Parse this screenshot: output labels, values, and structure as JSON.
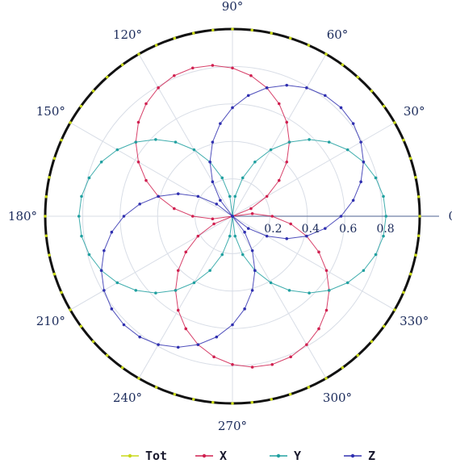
{
  "chart_data": {
    "type": "polar-line",
    "angle_labels": [
      "0°",
      "30°",
      "60°",
      "90°",
      "120°",
      "150°",
      "180°",
      "210°",
      "240°",
      "270°",
      "300°",
      "330°"
    ],
    "angle_values": [
      0,
      30,
      60,
      90,
      120,
      150,
      180,
      210,
      240,
      270,
      300,
      330
    ],
    "radial_ticks": [
      0.2,
      0.4,
      0.6,
      0.8
    ],
    "radial_tick_labels": [
      "0.2",
      "0.4",
      "0.6",
      "0.8"
    ],
    "rlim": [
      0,
      1.0
    ],
    "grid": true,
    "legend_position": "bottom",
    "series": [
      {
        "name": "Tot",
        "color": "#c8d818",
        "r": 1.0,
        "shape": "circle"
      },
      {
        "name": "X",
        "color": "#d02050",
        "shape": "petal",
        "peak": 0.82,
        "lobe_angles": [
          105,
          285
        ]
      },
      {
        "name": "Y",
        "color": "#20a0a0",
        "shape": "petal",
        "peak": 0.82,
        "lobe_angles": [
          0,
          180
        ]
      },
      {
        "name": "Z",
        "color": "#3030b0",
        "shape": "petal",
        "peak": 0.82,
        "lobe_angles": [
          45,
          225
        ]
      }
    ]
  }
}
